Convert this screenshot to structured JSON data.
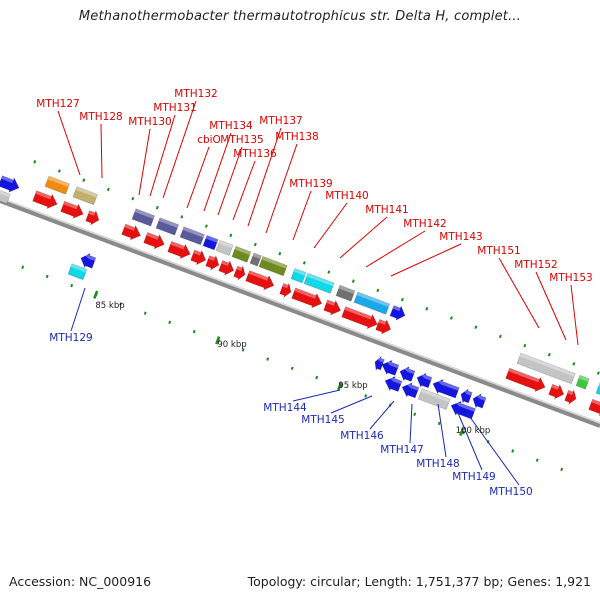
{
  "title": "Methanothermobacter thermautotrophicus str. Delta H, complet...",
  "footer": {
    "accession": "Accession: NC_000916",
    "summary": "Topology: circular; Length: 1,751,377 bp; Genes: 1,921"
  },
  "colors": {
    "forward_label": "#dd0000",
    "reverse_label": "#1a2ab8",
    "forward_strand": "#e61010",
    "reverse_strand": "#1416e0",
    "backbone": "#8a8a8a",
    "ticks": "#1e8a1e",
    "cog_orange": "#f08a10",
    "cog_khaki": "#bfb070",
    "cog_slate": "#5a5a9a",
    "cog_lightgray": "#c4c4c4",
    "cog_darkgray": "#707070",
    "cog_olive": "#6f8a1e",
    "cog_cyan": "#10d8e8",
    "cog_sky": "#1aa8e8",
    "cog_green": "#3cc83c",
    "cog_blue": "#1416e0"
  },
  "scale_labels": [
    "85 kbp",
    "90 kbp",
    "95 kbp",
    "100 kbp"
  ],
  "forward_genes": [
    "MTH127",
    "MTH128",
    "MTH130",
    "MTH131",
    "MTH132",
    "cbiO",
    "MTH134",
    "MTH135",
    "MTH136",
    "MTH137",
    "MTH138",
    "MTH139",
    "MTH140",
    "MTH141",
    "MTH142",
    "MTH143",
    "MTH151",
    "MTH152",
    "MTH153"
  ],
  "reverse_genes": [
    "MTH129",
    "MTH144",
    "MTH145",
    "MTH146",
    "MTH147",
    "MTH148",
    "MTH149",
    "MTH150"
  ]
}
